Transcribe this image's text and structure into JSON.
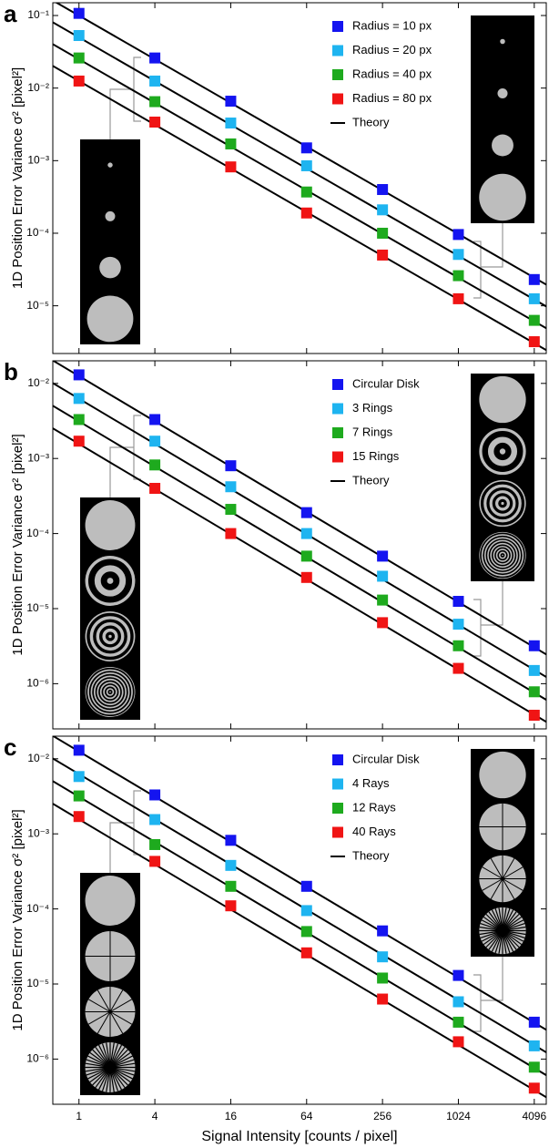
{
  "chart_data": [
    {
      "type": "scatter",
      "label": "a",
      "y_label": "1D Position Error Variance σ² [pixel²]",
      "log_x": true,
      "log_y": true,
      "x": [
        1,
        4,
        16,
        64,
        256,
        1024,
        4096
      ],
      "xlim": [
        0.62,
        5100
      ],
      "ylim": [
        2.2e-06,
        0.15
      ],
      "yticks": [
        {
          "value": 0.1,
          "label": "10⁻¹"
        },
        {
          "value": 0.01,
          "label": "10⁻²"
        },
        {
          "value": 0.001,
          "label": "10⁻³"
        },
        {
          "value": 0.0001,
          "label": "10⁻⁴"
        },
        {
          "value": 1e-05,
          "label": "10⁻⁵"
        }
      ],
      "series": [
        {
          "name": "Radius = 10 px",
          "color": "#1414f0",
          "values": [
            0.107,
            0.026,
            0.0066,
            0.0015,
            0.0004,
            9.6e-05,
            2.3e-05
          ]
        },
        {
          "name": "Radius = 20 px",
          "color": "#1eb4f0",
          "values": [
            0.053,
            0.0125,
            0.0033,
            0.00085,
            0.00021,
            5.1e-05,
            1.25e-05
          ]
        },
        {
          "name": "Radius = 40 px",
          "color": "#1eaa1e",
          "values": [
            0.026,
            0.0065,
            0.0017,
            0.00037,
            0.0001,
            2.6e-05,
            6.3e-06
          ]
        },
        {
          "name": "Radius = 80 px",
          "color": "#f01414",
          "values": [
            0.0125,
            0.0034,
            0.00082,
            0.00019,
            5e-05,
            1.25e-05,
            3.2e-06
          ]
        }
      ],
      "theory": {
        "name": "Theory",
        "color": "#000000",
        "x": [
          0.62,
          5100
        ],
        "lines": [
          [
            0.161,
            1.96e-05
          ],
          [
            0.0806,
            9.8e-06
          ],
          [
            0.0403,
            4.9e-06
          ],
          [
            0.0202,
            2.45e-06
          ]
        ]
      }
    },
    {
      "type": "scatter",
      "label": "b",
      "y_label": "1D Position Error Variance σ² [pixel²]",
      "log_x": true,
      "log_y": true,
      "x": [
        1,
        4,
        16,
        64,
        256,
        1024,
        4096
      ],
      "xlim": [
        0.62,
        5100
      ],
      "ylim": [
        2.5e-07,
        0.02
      ],
      "yticks": [
        {
          "value": 0.01,
          "label": "10⁻²"
        },
        {
          "value": 0.001,
          "label": "10⁻³"
        },
        {
          "value": 0.0001,
          "label": "10⁻⁴"
        },
        {
          "value": 1e-05,
          "label": "10⁻⁵"
        },
        {
          "value": 1e-06,
          "label": "10⁻⁶"
        }
      ],
      "series": [
        {
          "name": "Circular Disk",
          "color": "#1414f0",
          "values": [
            0.013,
            0.0033,
            0.0008,
            0.00019,
            5e-05,
            1.25e-05,
            3.2e-06
          ]
        },
        {
          "name": "3 Rings",
          "color": "#1eb4f0",
          "values": [
            0.0063,
            0.0017,
            0.00042,
            0.0001,
            2.7e-05,
            6.2e-06,
            1.5e-06
          ]
        },
        {
          "name": "7 Rings",
          "color": "#1eaa1e",
          "values": [
            0.0033,
            0.00082,
            0.00021,
            5e-05,
            1.3e-05,
            3.2e-06,
            7.8e-07
          ]
        },
        {
          "name": "15 Rings",
          "color": "#f01414",
          "values": [
            0.0017,
            0.0004,
            0.0001,
            2.6e-05,
            6.5e-06,
            1.6e-06,
            3.8e-07
          ]
        }
      ],
      "theory": {
        "name": "Theory",
        "color": "#000000",
        "x": [
          0.62,
          5100
        ],
        "lines": [
          [
            0.0202,
            2.45e-06
          ],
          [
            0.0101,
            1.23e-06
          ],
          [
            0.00504,
            6.1e-07
          ],
          [
            0.00252,
            3.1e-07
          ]
        ]
      }
    },
    {
      "type": "scatter",
      "label": "c",
      "y_label": "1D Position Error Variance σ² [pixel²]",
      "x_label": "Signal Intensity [counts / pixel]",
      "log_x": true,
      "log_y": true,
      "x": [
        1,
        4,
        16,
        64,
        256,
        1024,
        4096
      ],
      "xlim": [
        0.62,
        5100
      ],
      "ylim": [
        2.5e-07,
        0.02
      ],
      "xticks": [
        1,
        4,
        16,
        64,
        256,
        1024,
        4096
      ],
      "yticks": [
        {
          "value": 0.01,
          "label": "10⁻²"
        },
        {
          "value": 0.001,
          "label": "10⁻³"
        },
        {
          "value": 0.0001,
          "label": "10⁻⁴"
        },
        {
          "value": 1e-05,
          "label": "10⁻⁵"
        },
        {
          "value": 1e-06,
          "label": "10⁻⁶"
        }
      ],
      "series": [
        {
          "name": "Circular Disk",
          "color": "#1414f0",
          "values": [
            0.013,
            0.0033,
            0.00082,
            0.0002,
            5.1e-05,
            1.3e-05,
            3.1e-06
          ]
        },
        {
          "name": "4 Rays",
          "color": "#1eb4f0",
          "values": [
            0.0058,
            0.00155,
            0.00038,
            9.5e-05,
            2.3e-05,
            5.8e-06,
            1.5e-06
          ]
        },
        {
          "name": "12 Rays",
          "color": "#1eaa1e",
          "values": [
            0.0032,
            0.00072,
            0.0002,
            5e-05,
            1.2e-05,
            3.1e-06,
            7.8e-07
          ]
        },
        {
          "name": "40 Rays",
          "color": "#f01414",
          "values": [
            0.0017,
            0.00043,
            0.00011,
            2.6e-05,
            6.3e-06,
            1.7e-06,
            4.1e-07
          ]
        }
      ],
      "theory": {
        "name": "Theory",
        "color": "#000000",
        "x": [
          0.62,
          5100
        ],
        "lines": [
          [
            0.0202,
            2.45e-06
          ],
          [
            0.0101,
            1.23e-06
          ],
          [
            0.00504,
            6.1e-07
          ],
          [
            0.00252,
            3.1e-07
          ]
        ]
      }
    }
  ]
}
